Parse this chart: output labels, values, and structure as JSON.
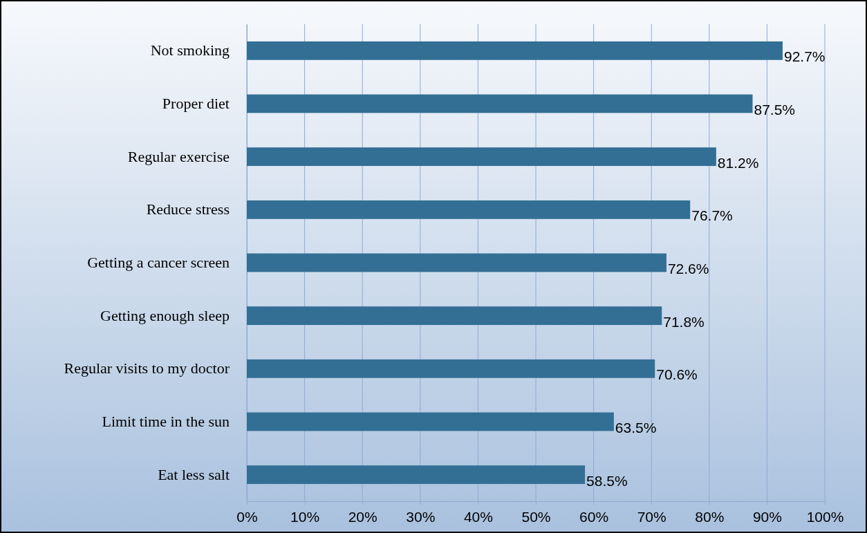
{
  "chart_data": {
    "type": "bar",
    "orientation": "horizontal",
    "categories": [
      "Not smoking",
      "Proper diet",
      "Regular exercise",
      "Reduce stress",
      "Getting a cancer screen",
      "Getting enough sleep",
      "Regular visits to my doctor",
      "Limit time in the sun",
      "Eat less salt"
    ],
    "values": [
      92.7,
      87.5,
      81.2,
      76.7,
      72.6,
      71.8,
      70.6,
      63.5,
      58.5
    ],
    "value_labels": [
      "92.7%",
      "87.5%",
      "81.2%",
      "76.7%",
      "72.6%",
      "71.8%",
      "70.6%",
      "63.5%",
      "58.5%"
    ],
    "color": "#336f94",
    "xlim": [
      0,
      100
    ],
    "xticks": [
      {
        "value": 0,
        "label": "0%"
      },
      {
        "value": 10,
        "label": "10%"
      },
      {
        "value": 20,
        "label": "20%"
      },
      {
        "value": 30,
        "label": "30%"
      },
      {
        "value": 40,
        "label": "40%"
      },
      {
        "value": 50,
        "label": "50%"
      },
      {
        "value": 60,
        "label": "60%"
      },
      {
        "value": 70,
        "label": "70%"
      },
      {
        "value": 80,
        "label": "80%"
      },
      {
        "value": 90,
        "label": "90%"
      },
      {
        "value": 100,
        "label": "100%"
      }
    ],
    "grid": "x"
  }
}
